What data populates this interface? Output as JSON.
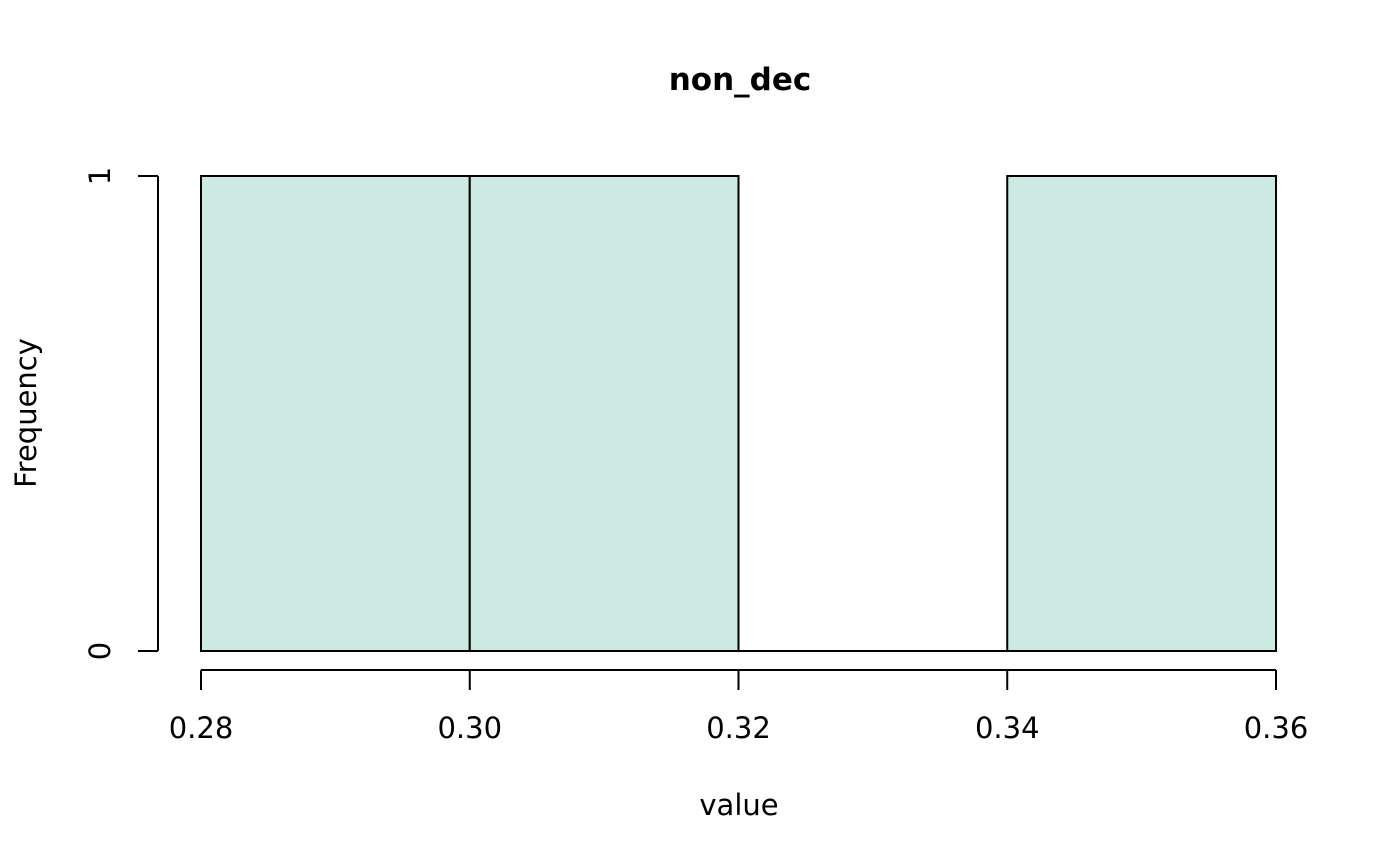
{
  "chart_data": {
    "type": "bar",
    "title": "non_dec",
    "xlabel": "value",
    "ylabel": "Frequency",
    "bins": [
      {
        "x0": 0.28,
        "x1": 0.3,
        "count": 1
      },
      {
        "x0": 0.3,
        "x1": 0.32,
        "count": 1
      },
      {
        "x0": 0.32,
        "x1": 0.34,
        "count": 0
      },
      {
        "x0": 0.34,
        "x1": 0.36,
        "count": 1
      }
    ],
    "xlim": [
      0.28,
      0.36
    ],
    "ylim": [
      0,
      1
    ],
    "x_ticks": [
      "0.28",
      "0.30",
      "0.32",
      "0.34",
      "0.36"
    ],
    "y_ticks": [
      "0",
      "1"
    ],
    "bar_color": "#cceae1",
    "grid": false
  }
}
